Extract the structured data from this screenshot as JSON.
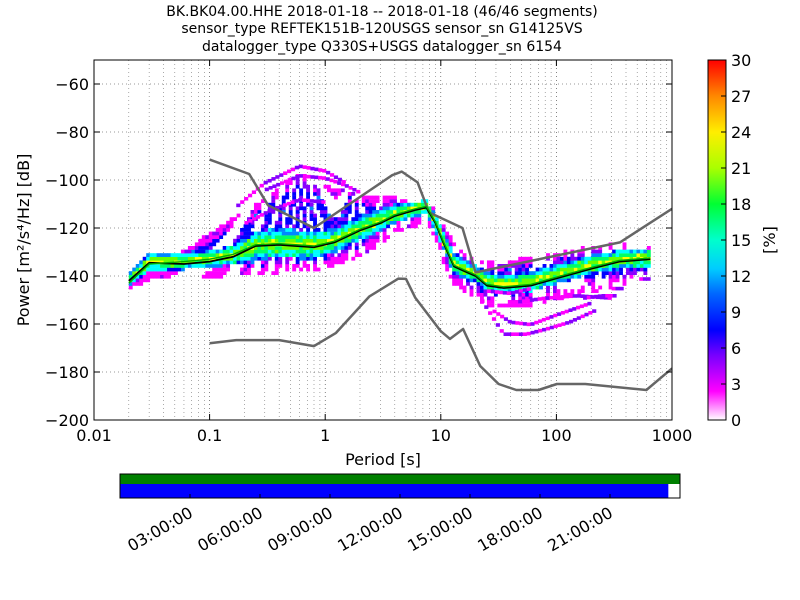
{
  "chart_data": [
    {
      "type": "heatmap",
      "title_lines": [
        "BK.BK04.00.HHE   2018-01-18 -- 2018-01-18  (46/46 segments)",
        "sensor_type REFTEK151B-120USGS sensor_sn G14125VS",
        "datalogger_type Q330S+USGS datalogger_sn 6154"
      ],
      "xlabel": "Period [s]",
      "ylabel": "Power [m²/s⁴/Hz] [dB]",
      "xscale": "log",
      "xlim": [
        0.01,
        1000
      ],
      "ylim": [
        -200,
        -50
      ],
      "xticks": [
        0.01,
        0.1,
        1,
        10,
        100,
        1000
      ],
      "xtick_labels": [
        "0.01",
        "0.1",
        "1",
        "10",
        "100",
        "1000"
      ],
      "yticks": [
        -200,
        -180,
        -160,
        -140,
        -120,
        -100,
        -80,
        -60
      ],
      "ytick_labels": [
        "−200",
        "−180",
        "−160",
        "−140",
        "−120",
        "−100",
        "−80",
        "−60"
      ],
      "grid": "dotted",
      "colorbar": {
        "label": "[%]",
        "range": [
          0,
          30
        ],
        "ticks": [
          0,
          3,
          6,
          9,
          12,
          15,
          18,
          21,
          24,
          27,
          30
        ],
        "tick_labels": [
          "0",
          "3",
          "6",
          "9",
          "12",
          "15",
          "18",
          "21",
          "24",
          "27",
          "30"
        ]
      },
      "series": [
        {
          "role": "noise-model-high",
          "color": "#666666",
          "points": [
            [
              0.1,
              -91.5
            ],
            [
              0.22,
              -97.5
            ],
            [
              0.32,
              -110.5
            ],
            [
              0.8,
              -120
            ],
            [
              3.8,
              -98
            ],
            [
              4.6,
              -96.5
            ],
            [
              6.3,
              -101
            ],
            [
              7.9,
              -113.5
            ],
            [
              15.4,
              -120
            ],
            [
              20,
              -138.5
            ],
            [
              354,
              -126
            ],
            [
              1000,
              -112
            ]
          ]
        },
        {
          "role": "noise-model-low",
          "color": "#666666",
          "points": [
            [
              0.1,
              -168
            ],
            [
              0.17,
              -166.7
            ],
            [
              0.4,
              -166.7
            ],
            [
              0.8,
              -169.2
            ],
            [
              1.24,
              -163.7
            ],
            [
              2.4,
              -148.6
            ],
            [
              4.3,
              -141.1
            ],
            [
              5,
              -141.2
            ],
            [
              6,
              -149
            ],
            [
              10,
              -163
            ],
            [
              12,
              -166.2
            ],
            [
              15.6,
              -162.1
            ],
            [
              21.9,
              -177.5
            ],
            [
              31.6,
              -185
            ],
            [
              45,
              -187.5
            ],
            [
              70,
              -187.5
            ],
            [
              101,
              -185
            ],
            [
              178,
              -185
            ],
            [
              600,
              -187.5
            ],
            [
              1000,
              -178.5
            ]
          ]
        },
        {
          "role": "mean-curve",
          "color": "#000000",
          "points": [
            [
              0.02,
              -142
            ],
            [
              0.03,
              -134.5
            ],
            [
              0.06,
              -135
            ],
            [
              0.1,
              -134
            ],
            [
              0.16,
              -132
            ],
            [
              0.25,
              -127.5
            ],
            [
              0.4,
              -127
            ],
            [
              0.8,
              -128
            ],
            [
              1.2,
              -126
            ],
            [
              2,
              -121
            ],
            [
              3,
              -118
            ],
            [
              4,
              -115
            ],
            [
              6,
              -112.5
            ],
            [
              7.5,
              -111.5
            ],
            [
              9,
              -118
            ],
            [
              10.5,
              -126
            ],
            [
              13,
              -136
            ],
            [
              16,
              -138
            ],
            [
              20,
              -140
            ],
            [
              25,
              -144
            ],
            [
              35,
              -145
            ],
            [
              60,
              -144
            ],
            [
              100,
              -141
            ],
            [
              200,
              -137
            ],
            [
              350,
              -134
            ],
            [
              650,
              -133
            ]
          ]
        },
        {
          "role": "median-curve",
          "color": "#00aa00",
          "points": [
            [
              0.02,
              -143
            ],
            [
              0.03,
              -135
            ],
            [
              0.06,
              -134
            ],
            [
              0.1,
              -133
            ],
            [
              0.16,
              -131
            ],
            [
              0.25,
              -127
            ],
            [
              0.4,
              -126.5
            ],
            [
              0.8,
              -127.5
            ],
            [
              1.2,
              -125.5
            ],
            [
              2,
              -120.5
            ],
            [
              3,
              -117.5
            ],
            [
              4,
              -114.5
            ],
            [
              6,
              -112
            ],
            [
              7.5,
              -111
            ],
            [
              9,
              -117.5
            ],
            [
              10.5,
              -125.5
            ],
            [
              13,
              -135.5
            ],
            [
              16,
              -137.5
            ],
            [
              20,
              -139.5
            ],
            [
              25,
              -143.5
            ],
            [
              35,
              -144.5
            ],
            [
              60,
              -143.5
            ],
            [
              100,
              -140.5
            ],
            [
              200,
              -136.5
            ],
            [
              350,
              -133.5
            ],
            [
              650,
              -132.5
            ]
          ]
        }
      ],
      "density_outer_band": {
        "period": [
          0.02,
          0.03,
          0.06,
          0.1,
          0.16,
          0.25,
          0.4,
          0.6,
          0.8,
          1.2,
          2,
          3,
          4,
          6,
          7.5,
          9,
          10.5,
          13,
          16,
          20,
          25,
          35,
          60,
          100,
          200,
          350,
          650
        ],
        "lower_db": [
          -146,
          -141,
          -141,
          -140,
          -139,
          -139,
          -138,
          -137,
          -138,
          -135,
          -131,
          -126,
          -121,
          -119,
          -117,
          -124,
          -134,
          -144,
          -146,
          -150,
          -152,
          -153,
          -152,
          -149,
          -146,
          -144,
          -142
        ],
        "upper_db": [
          -139,
          -129,
          -128,
          -123,
          -116,
          -111,
          -104,
          -97,
          -102,
          -104,
          -107,
          -108,
          -107,
          -111,
          -108,
          -113,
          -119,
          -127,
          -131,
          -134,
          -135,
          -134,
          -133,
          -131,
          -128,
          -127,
          -127
        ]
      },
      "density_core_band": {
        "period": [
          0.02,
          0.03,
          0.06,
          0.1,
          0.16,
          0.25,
          0.4,
          0.8,
          1.2,
          2,
          3,
          4,
          6,
          7.5,
          9,
          10.5,
          13,
          16,
          20,
          25,
          35,
          60,
          100,
          200,
          350,
          650
        ],
        "lower_db": [
          -145,
          -139,
          -138,
          -137,
          -136,
          -134,
          -133,
          -134,
          -131,
          -126,
          -122,
          -119,
          -116,
          -115,
          -122,
          -130,
          -140,
          -142,
          -143,
          -147,
          -148,
          -147,
          -144,
          -140,
          -138,
          -137
        ],
        "upper_db": [
          -140,
          -131,
          -131,
          -130,
          -128,
          -122,
          -121,
          -122,
          -121,
          -116,
          -113,
          -111,
          -109,
          -109,
          -115,
          -122,
          -131,
          -134,
          -136,
          -139,
          -140,
          -139,
          -136,
          -132,
          -130,
          -129
        ]
      },
      "outlier_segments": [
        {
          "period": [
            0.17,
            0.3,
            0.6,
            1.0,
            1.5
          ],
          "db": [
            -112,
            -102,
            -95,
            -97,
            -102
          ]
        },
        {
          "period": [
            0.3,
            0.6,
            1.0,
            1.5,
            2.0
          ],
          "db": [
            -105,
            -99,
            -100,
            -103,
            -106
          ]
        },
        {
          "period": [
            0.2,
            0.35,
            0.6,
            1.0
          ],
          "db": [
            -119,
            -113,
            -109,
            -110
          ]
        },
        {
          "period": [
            28,
            40,
            60,
            100,
            200
          ],
          "db": [
            -155,
            -160,
            -161,
            -157,
            -152
          ]
        },
        {
          "period": [
            22,
            35,
            55,
            80,
            130,
            220
          ],
          "db": [
            -150,
            -165,
            -165,
            -163,
            -160,
            -155
          ]
        },
        {
          "period": [
            40,
            80,
            150,
            300
          ],
          "db": [
            -152,
            -150,
            -149,
            -150
          ]
        },
        {
          "period": [
            300,
            380
          ],
          "db": [
            -146,
            -146
          ]
        },
        {
          "period": [
            170,
            250,
            330
          ],
          "db": [
            -150,
            -149,
            -149
          ]
        },
        {
          "period": [
            520,
            650
          ],
          "db": [
            -142,
            -142
          ]
        },
        {
          "period": [
            25,
            40,
            60
          ],
          "db": [
            -147,
            -148,
            -146
          ]
        }
      ],
      "density_colors": [
        "#ff00ff",
        "#8800ff",
        "#0000ff",
        "#0088ff",
        "#00ffff",
        "#00ff66",
        "#66ff00",
        "#ffff00"
      ]
    },
    {
      "type": "timeline",
      "xtick_labels": [
        "03:00:00",
        "06:00:00",
        "09:00:00",
        "12:00:00",
        "15:00:00",
        "18:00:00",
        "21:00:00"
      ],
      "xtick_hours": [
        3,
        6,
        9,
        12,
        15,
        18,
        21
      ],
      "range_hours": [
        0,
        24
      ],
      "bars": [
        {
          "role": "data-availability",
          "color": "#008000",
          "start_hour": 0,
          "end_hour": 24
        },
        {
          "role": "psd-coverage",
          "color": "#0000ff",
          "start_hour": 0,
          "end_hour": 23.5
        }
      ]
    }
  ]
}
